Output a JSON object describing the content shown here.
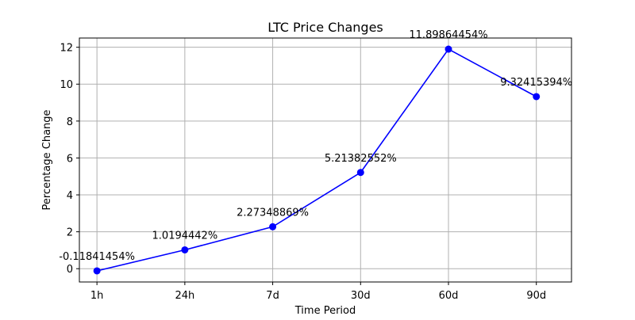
{
  "chart_data": {
    "type": "line",
    "title": "LTC Price Changes",
    "xlabel": "Time Period",
    "ylabel": "Percentage Change",
    "categories": [
      "1h",
      "24h",
      "7d",
      "30d",
      "60d",
      "90d"
    ],
    "series": [
      {
        "values": [
          -0.11841454,
          1.0194442,
          2.27348869,
          5.21382552,
          11.89864454,
          9.32415394
        ],
        "color": "#0000ff",
        "marker": "circle"
      }
    ],
    "data_labels": [
      "-0.11841454%",
      "1.0194442%",
      "2.27348869%",
      "5.21382552%",
      "11.89864454%",
      "9.32415394%"
    ],
    "yticks": [
      0,
      2,
      4,
      6,
      8,
      10,
      12
    ],
    "ylim": [
      -0.72,
      12.5
    ],
    "grid": true
  }
}
